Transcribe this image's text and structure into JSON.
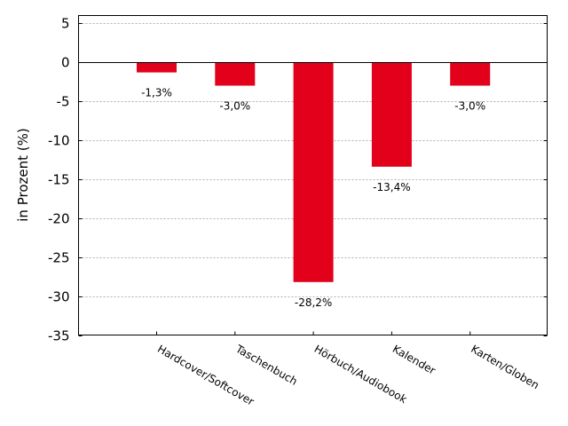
{
  "chart_data": {
    "type": "bar",
    "categories": [
      "Hardcover/Softcover",
      "Taschenbuch",
      "Hörbuch/Audiobook",
      "Kalender",
      "Karten/Globen"
    ],
    "values": [
      -1.3,
      -3.0,
      -28.2,
      -13.4,
      -3.0
    ],
    "data_labels": [
      "-1,3%",
      "-3,0%",
      "-28,2%",
      "-13,4%",
      "-3,0%"
    ],
    "ylabel": "in Prozent (%)",
    "xlabel": "",
    "ylim": [
      -35,
      6
    ],
    "yticks": [
      5,
      0,
      -5,
      -10,
      -15,
      -20,
      -25,
      -30,
      -35
    ],
    "grid": true,
    "bar_color": "#e2001a"
  }
}
